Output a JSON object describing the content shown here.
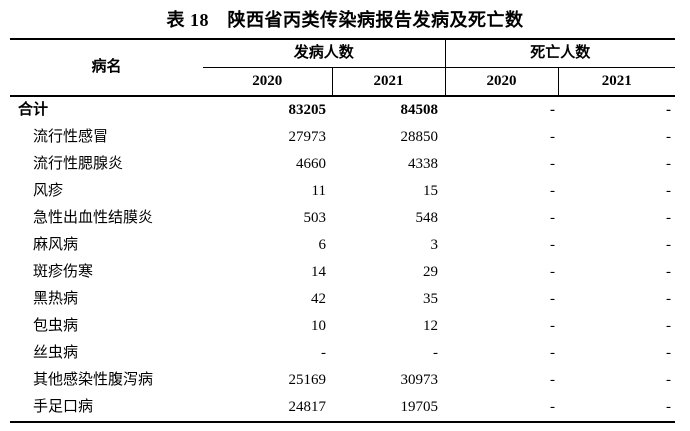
{
  "title": "表 18　陕西省丙类传染病报告发病及死亡数",
  "table": {
    "headers": {
      "disease": "病名",
      "incidence_group": "发病人数",
      "deaths_group": "死亡人数",
      "incidence_2020": "2020",
      "incidence_2021": "2021",
      "deaths_2020": "2020",
      "deaths_2021": "2021"
    },
    "rows": [
      {
        "name": "合计",
        "incidence_2020": "83205",
        "incidence_2021": "84508",
        "deaths_2020": "-",
        "deaths_2021": "-",
        "is_total": true
      },
      {
        "name": "流行性感冒",
        "incidence_2020": "27973",
        "incidence_2021": "28850",
        "deaths_2020": "-",
        "deaths_2021": "-",
        "is_total": false
      },
      {
        "name": "流行性腮腺炎",
        "incidence_2020": "4660",
        "incidence_2021": "4338",
        "deaths_2020": "-",
        "deaths_2021": "-",
        "is_total": false
      },
      {
        "name": "风疹",
        "incidence_2020": "11",
        "incidence_2021": "15",
        "deaths_2020": "-",
        "deaths_2021": "-",
        "is_total": false
      },
      {
        "name": "急性出血性结膜炎",
        "incidence_2020": "503",
        "incidence_2021": "548",
        "deaths_2020": "-",
        "deaths_2021": "-",
        "is_total": false
      },
      {
        "name": "麻风病",
        "incidence_2020": "6",
        "incidence_2021": "3",
        "deaths_2020": "-",
        "deaths_2021": "-",
        "is_total": false
      },
      {
        "name": "斑疹伤寒",
        "incidence_2020": "14",
        "incidence_2021": "29",
        "deaths_2020": "-",
        "deaths_2021": "-",
        "is_total": false
      },
      {
        "name": "黑热病",
        "incidence_2020": "42",
        "incidence_2021": "35",
        "deaths_2020": "-",
        "deaths_2021": "-",
        "is_total": false
      },
      {
        "name": "包虫病",
        "incidence_2020": "10",
        "incidence_2021": "12",
        "deaths_2020": "-",
        "deaths_2021": "-",
        "is_total": false
      },
      {
        "name": "丝虫病",
        "incidence_2020": "-",
        "incidence_2021": "-",
        "deaths_2020": "-",
        "deaths_2021": "-",
        "is_total": false
      },
      {
        "name": "其他感染性腹泻病",
        "incidence_2020": "25169",
        "incidence_2021": "30973",
        "deaths_2020": "-",
        "deaths_2021": "-",
        "is_total": false
      },
      {
        "name": "手足口病",
        "incidence_2020": "24817",
        "incidence_2021": "19705",
        "deaths_2020": "-",
        "deaths_2021": "-",
        "is_total": false
      }
    ]
  }
}
